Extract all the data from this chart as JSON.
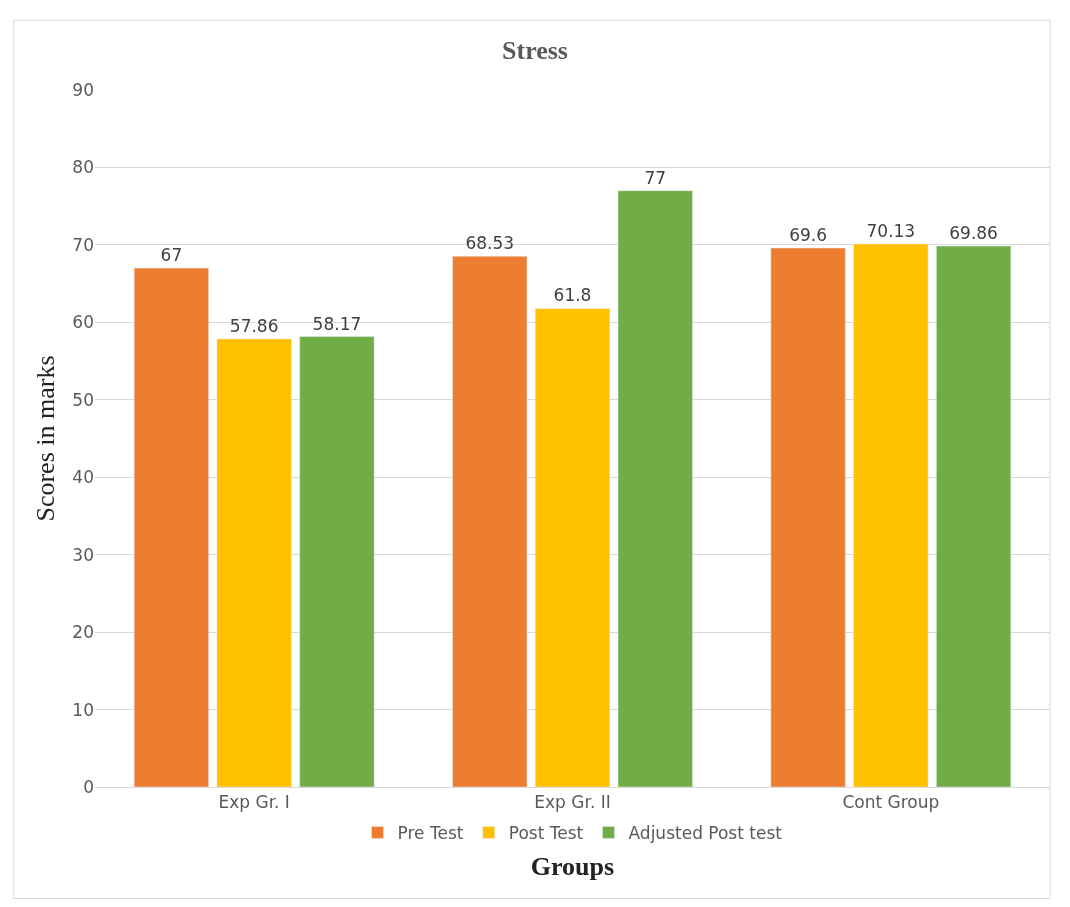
{
  "chart_data": {
    "type": "bar",
    "title": "Stress",
    "xlabel": "Groups",
    "ylabel": "Scores in marks",
    "categories": [
      "Exp Gr. I",
      "Exp Gr. II",
      "Cont Group"
    ],
    "series": [
      {
        "name": "Pre Test",
        "color": "#ed7d31",
        "values": [
          67,
          68.53,
          69.6
        ]
      },
      {
        "name": "Post Test",
        "color": "#ffc000",
        "values": [
          57.86,
          61.8,
          70.13
        ]
      },
      {
        "name": "Adjusted Post test",
        "color": "#70ad47",
        "values": [
          58.17,
          77,
          69.86
        ]
      }
    ],
    "ylim": [
      0,
      90
    ],
    "yticks": [
      0,
      10,
      20,
      30,
      40,
      50,
      60,
      70,
      80,
      90
    ],
    "grid": "y",
    "legend": "bottom",
    "data_labels": true
  }
}
